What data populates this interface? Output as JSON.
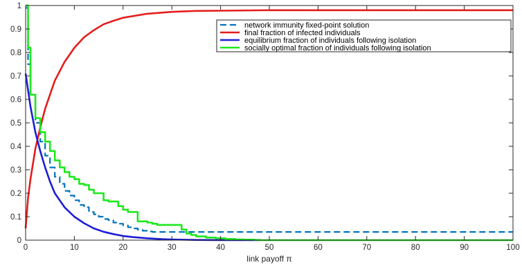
{
  "chart_data": {
    "type": "line",
    "xlabel": "link payoff π",
    "ylabel": "",
    "title": "",
    "xlim": [
      0,
      100
    ],
    "ylim": [
      0,
      1
    ],
    "xticks": [
      0,
      10,
      20,
      30,
      40,
      50,
      60,
      70,
      80,
      90,
      100
    ],
    "yticks": [
      0,
      0.1,
      0.2,
      0.3,
      0.4,
      0.5,
      0.6,
      0.7,
      0.8,
      0.9,
      1
    ],
    "grid": false,
    "legend_position": "top-right",
    "series": [
      {
        "name": "network immunity fixed-point solution",
        "color": "#0072bd",
        "dash": "dashed",
        "step": true,
        "x": [
          0,
          0.5,
          1,
          2,
          3,
          4,
          5,
          6,
          7,
          8,
          9,
          10,
          11,
          12,
          13,
          14,
          15,
          16,
          17,
          18,
          19,
          20,
          21,
          22,
          23,
          24,
          25,
          26,
          28,
          100
        ],
        "y": [
          0.99,
          0.75,
          0.62,
          0.5,
          0.42,
          0.36,
          0.31,
          0.27,
          0.24,
          0.21,
          0.19,
          0.17,
          0.15,
          0.14,
          0.12,
          0.11,
          0.1,
          0.09,
          0.085,
          0.075,
          0.07,
          0.063,
          0.055,
          0.05,
          0.045,
          0.04,
          0.037,
          0.035,
          0.035,
          0.035
        ]
      },
      {
        "name": "final fraction of infected individuals",
        "color": "#e51c1c",
        "dash": "solid",
        "step": false,
        "x": [
          0,
          0.5,
          1,
          2,
          3,
          4,
          5,
          6,
          8,
          10,
          12,
          14,
          16,
          18,
          20,
          25,
          30,
          35,
          40,
          50,
          60,
          80,
          100
        ],
        "y": [
          0.05,
          0.18,
          0.26,
          0.39,
          0.48,
          0.56,
          0.62,
          0.68,
          0.76,
          0.82,
          0.865,
          0.895,
          0.92,
          0.935,
          0.948,
          0.965,
          0.973,
          0.977,
          0.978,
          0.98,
          0.98,
          0.98,
          0.98
        ]
      },
      {
        "name": "equilibrium fraction of individuals following isolation",
        "color": "#1d1dd6",
        "dash": "solid",
        "step": false,
        "x": [
          0,
          1,
          2,
          3,
          4,
          5,
          6,
          8,
          10,
          12,
          14,
          16,
          18,
          20,
          22,
          25,
          28,
          30,
          35,
          40,
          45,
          48
        ],
        "y": [
          0.71,
          0.57,
          0.46,
          0.38,
          0.31,
          0.25,
          0.2,
          0.14,
          0.1,
          0.072,
          0.05,
          0.036,
          0.026,
          0.018,
          0.013,
          0.008,
          0.004,
          0.003,
          0.001,
          0.0003,
          0.0001,
          0
        ]
      },
      {
        "name": "socially optimal fraction of individuals following isolation",
        "color": "#1de81d",
        "dash": "solid",
        "step": true,
        "x": [
          0,
          0.5,
          1,
          2,
          3,
          4,
          5,
          6,
          7,
          8,
          9,
          10,
          11,
          12,
          13,
          14,
          15,
          16,
          17,
          18,
          19,
          20,
          21,
          22,
          23,
          24,
          25,
          26,
          27,
          28,
          29,
          30,
          31,
          32,
          33,
          34,
          35,
          37,
          39,
          41,
          43,
          45,
          47,
          48,
          100
        ],
        "y": [
          1.0,
          0.82,
          0.62,
          0.52,
          0.46,
          0.42,
          0.38,
          0.34,
          0.31,
          0.29,
          0.27,
          0.26,
          0.24,
          0.235,
          0.215,
          0.2,
          0.2,
          0.17,
          0.165,
          0.165,
          0.145,
          0.13,
          0.12,
          0.12,
          0.08,
          0.08,
          0.075,
          0.07,
          0.065,
          0.065,
          0.065,
          0.065,
          0.065,
          0.045,
          0.028,
          0.022,
          0.016,
          0.011,
          0.008,
          0.005,
          0.003,
          0.002,
          0.001,
          0,
          0
        ]
      }
    ]
  }
}
